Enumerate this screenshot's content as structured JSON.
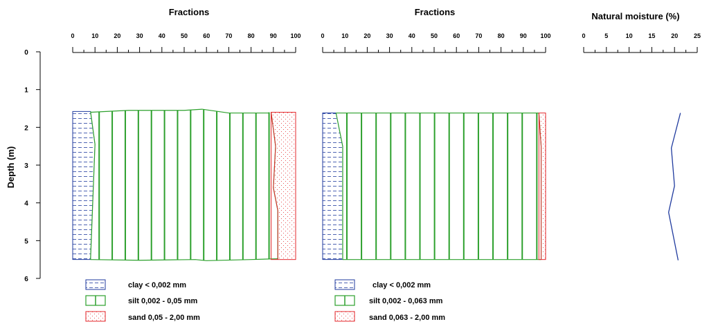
{
  "colors": {
    "clay": "#1f3a9e",
    "silt": "#2ca02c",
    "sand": "#e3262a",
    "axis": "#000000"
  },
  "depth_axis": {
    "label": "Depth (m)",
    "ticks": [
      "0",
      "1",
      "2",
      "3",
      "4",
      "5",
      "6"
    ]
  },
  "chart_data": [
    {
      "type": "area",
      "title": "Fractions",
      "xlim": [
        0,
        100
      ],
      "ylim": [
        0,
        6
      ],
      "x_ticks": [
        "0",
        "10",
        "20",
        "30",
        "40",
        "50",
        "60",
        "70",
        "80",
        "90",
        "100"
      ],
      "series": [
        {
          "name": "clay < 0,002 mm",
          "depth": [
            1.58,
            2.45,
            5.5
          ],
          "cumulative": [
            8,
            10,
            8
          ]
        },
        {
          "name": "silt 0,002 - 0,05 mm",
          "top_profile": {
            "x": [
              8,
              25,
              50,
              58,
              70,
              88
            ],
            "depth": [
              1.6,
              1.55,
              1.55,
              1.52,
              1.62,
              1.62
            ]
          },
          "bottom_profile": {
            "x": [
              8,
              30,
              55,
              60,
              80,
              92
            ],
            "depth": [
              5.5,
              5.52,
              5.5,
              5.53,
              5.5,
              5.48
            ]
          },
          "depth": [
            1.6,
            2.5,
            3.6,
            4.2,
            5.5
          ],
          "cumulative": [
            89,
            91,
            90,
            92,
            92
          ]
        },
        {
          "name": "sand 0,05 - 2,00 mm",
          "depth": [
            1.6,
            5.5
          ],
          "cumulative": [
            100,
            100
          ]
        }
      ],
      "legend": [
        "clay < 0,002 mm",
        "silt 0,002 - 0,05 mm",
        "sand 0,05 - 2,00 mm"
      ]
    },
    {
      "type": "area",
      "title": "Fractions",
      "xlim": [
        0,
        100
      ],
      "ylim": [
        0,
        6
      ],
      "x_ticks": [
        "0",
        "10",
        "20",
        "30",
        "40",
        "50",
        "60",
        "70",
        "80",
        "90",
        "100"
      ],
      "series": [
        {
          "name": "clay < 0,002 mm",
          "depth": [
            1.62,
            2.5,
            5.5
          ],
          "cumulative": [
            6,
            9,
            9
          ]
        },
        {
          "name": "silt 0,002 - 0,063 mm",
          "depth": [
            1.62,
            2.5,
            5.5
          ],
          "cumulative": [
            97,
            98,
            98
          ]
        },
        {
          "name": "sand 0,063 - 2,00 mm",
          "depth": [
            1.62,
            5.5
          ],
          "cumulative": [
            100,
            100
          ]
        }
      ],
      "legend": [
        "clay < 0,002 mm",
        "silt 0,002 - 0,063 mm",
        "sand 0,063 - 2,00 mm"
      ]
    },
    {
      "type": "line",
      "title": "Natural moisture (%)",
      "xlim": [
        0,
        25
      ],
      "ylim": [
        0,
        6
      ],
      "x_ticks": [
        "0",
        "5",
        "10",
        "15",
        "20",
        "25"
      ],
      "series": [
        {
          "name": "",
          "depth": [
            1.62,
            2.55,
            3.55,
            4.25,
            5.52
          ],
          "moisture": [
            21.3,
            19.3,
            20.0,
            18.7,
            20.8
          ]
        }
      ]
    }
  ]
}
